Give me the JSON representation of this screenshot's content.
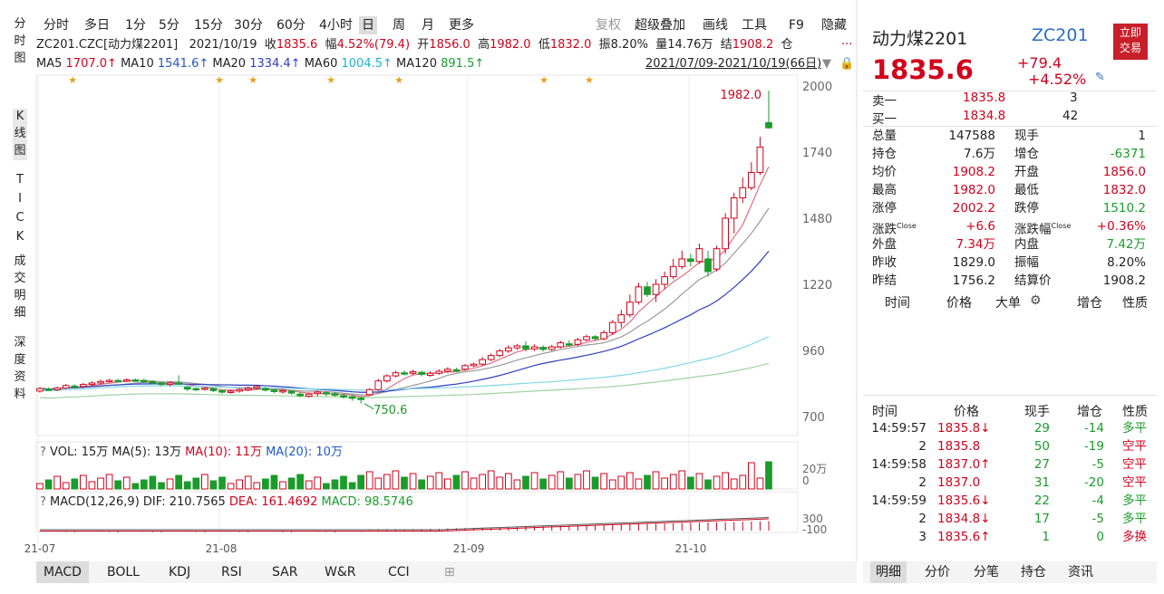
{
  "vertical_tabs": [
    {
      "label": "分时图",
      "chars": [
        "分",
        "时",
        "图"
      ],
      "active": false
    },
    {
      "label": "K线图",
      "chars": [
        "K",
        "线",
        "图"
      ],
      "active": true
    },
    {
      "label": "TICK",
      "chars": [
        "T",
        "I",
        "C",
        "K"
      ],
      "active": false
    },
    {
      "label": "成交明细",
      "chars": [
        "成",
        "交",
        "明",
        "细"
      ],
      "active": false
    },
    {
      "label": "深度资料",
      "chars": [
        "深",
        "度",
        "资",
        "料"
      ],
      "active": false
    }
  ],
  "period_bar": {
    "items": [
      "分时",
      "多日",
      "1分",
      "5分",
      "15分",
      "30分",
      "60分",
      "4小时",
      "日",
      "周",
      "月",
      "更多"
    ],
    "selected": "日",
    "right_items": [
      "复权",
      "超级叠加",
      "画线",
      "工具",
      "F9",
      "隐藏"
    ]
  },
  "info": {
    "code": "ZC201.CZC[动力煤2201]",
    "date": "2021/10/19",
    "close_label": "收",
    "close": "1835.6",
    "amp_label": "幅",
    "amp": "4.52%(79.4)",
    "open_label": "开",
    "open": "1856.0",
    "high_label": "高",
    "high": "1982.0",
    "low_label": "低",
    "low": "1832.0",
    "swing_label": "振",
    "swing": "8.20%",
    "vol_label": "量",
    "vol": "14.76万",
    "settle_label": "结",
    "settle": "1908.2",
    "oi_label": "仓",
    "more": "..."
  },
  "ma_line": {
    "ma5_label": "MA5",
    "ma5": "1707.0↑",
    "ma10_label": "MA10",
    "ma10": "1541.6↑",
    "ma20_label": "MA20",
    "ma20": "1334.4↑",
    "ma60_label": "MA60",
    "ma60": "1004.5↑",
    "ma120_label": "MA120",
    "ma120": "891.5↑",
    "range": "2021/07/09-2021/10/19(66日)"
  },
  "colors": {
    "up": "#d0021b",
    "down": "#1a9c2a",
    "ma5": "#e07080",
    "ma10": "#9a9a9a",
    "ma20": "#2e3fbf",
    "ma60": "#7fd8e8",
    "ma120": "#9ed39e",
    "star": "#e8a020"
  },
  "chart_data": {
    "type": "candlestick",
    "title": "",
    "y_ticks": [
      2000,
      1740,
      1480,
      1220,
      960,
      700
    ],
    "ylim": [
      700,
      2000
    ],
    "x_tick_labels": [
      "21-07",
      "21-08",
      "21-09",
      "21-10"
    ],
    "annotations": [
      {
        "label": "1982.0",
        "value": 1982.0
      },
      {
        "label": "750.6",
        "value": 750.6
      }
    ],
    "candles": [
      {
        "o": 800,
        "c": 810,
        "h": 816,
        "l": 794
      },
      {
        "o": 808,
        "c": 806,
        "h": 814,
        "l": 800
      },
      {
        "o": 805,
        "c": 812,
        "h": 818,
        "l": 800
      },
      {
        "o": 812,
        "c": 822,
        "h": 828,
        "l": 808
      },
      {
        "o": 820,
        "c": 816,
        "h": 826,
        "l": 810
      },
      {
        "o": 818,
        "c": 826,
        "h": 832,
        "l": 812
      },
      {
        "o": 826,
        "c": 832,
        "h": 838,
        "l": 820
      },
      {
        "o": 832,
        "c": 838,
        "h": 845,
        "l": 826
      },
      {
        "o": 838,
        "c": 842,
        "h": 848,
        "l": 834
      },
      {
        "o": 842,
        "c": 840,
        "h": 848,
        "l": 834
      },
      {
        "o": 842,
        "c": 844,
        "h": 850,
        "l": 836
      },
      {
        "o": 844,
        "c": 842,
        "h": 850,
        "l": 836
      },
      {
        "o": 842,
        "c": 838,
        "h": 848,
        "l": 832
      },
      {
        "o": 838,
        "c": 832,
        "h": 842,
        "l": 826
      },
      {
        "o": 832,
        "c": 826,
        "h": 836,
        "l": 820
      },
      {
        "o": 826,
        "c": 832,
        "h": 838,
        "l": 820
      },
      {
        "o": 832,
        "c": 830,
        "h": 862,
        "l": 826
      },
      {
        "o": 815,
        "c": 808,
        "h": 818,
        "l": 800
      },
      {
        "o": 810,
        "c": 806,
        "h": 814,
        "l": 800
      },
      {
        "o": 808,
        "c": 812,
        "h": 816,
        "l": 802
      },
      {
        "o": 810,
        "c": 802,
        "h": 812,
        "l": 796
      },
      {
        "o": 802,
        "c": 796,
        "h": 806,
        "l": 790
      },
      {
        "o": 796,
        "c": 800,
        "h": 806,
        "l": 790
      },
      {
        "o": 800,
        "c": 806,
        "h": 812,
        "l": 794
      },
      {
        "o": 806,
        "c": 812,
        "h": 818,
        "l": 800
      },
      {
        "o": 812,
        "c": 818,
        "h": 824,
        "l": 806
      },
      {
        "o": 810,
        "c": 804,
        "h": 816,
        "l": 798
      },
      {
        "o": 804,
        "c": 798,
        "h": 808,
        "l": 792
      },
      {
        "o": 798,
        "c": 802,
        "h": 808,
        "l": 790
      },
      {
        "o": 800,
        "c": 792,
        "h": 804,
        "l": 786
      },
      {
        "o": 788,
        "c": 782,
        "h": 796,
        "l": 776
      },
      {
        "o": 780,
        "c": 788,
        "h": 794,
        "l": 775
      },
      {
        "o": 790,
        "c": 796,
        "h": 802,
        "l": 780
      },
      {
        "o": 794,
        "c": 790,
        "h": 800,
        "l": 780
      },
      {
        "o": 790,
        "c": 784,
        "h": 796,
        "l": 778
      },
      {
        "o": 782,
        "c": 778,
        "h": 790,
        "l": 770
      },
      {
        "o": 778,
        "c": 772,
        "h": 784,
        "l": 762
      },
      {
        "o": 772,
        "c": 768,
        "h": 780,
        "l": 751
      },
      {
        "o": 786,
        "c": 806,
        "h": 812,
        "l": 782
      },
      {
        "o": 806,
        "c": 840,
        "h": 848,
        "l": 800
      },
      {
        "o": 840,
        "c": 860,
        "h": 866,
        "l": 834
      },
      {
        "o": 860,
        "c": 872,
        "h": 880,
        "l": 854
      },
      {
        "o": 872,
        "c": 868,
        "h": 882,
        "l": 862
      },
      {
        "o": 870,
        "c": 876,
        "h": 884,
        "l": 864
      },
      {
        "o": 874,
        "c": 866,
        "h": 880,
        "l": 858
      },
      {
        "o": 862,
        "c": 870,
        "h": 878,
        "l": 856
      },
      {
        "o": 870,
        "c": 878,
        "h": 886,
        "l": 864
      },
      {
        "o": 878,
        "c": 886,
        "h": 894,
        "l": 872
      },
      {
        "o": 884,
        "c": 880,
        "h": 892,
        "l": 874
      },
      {
        "o": 886,
        "c": 900,
        "h": 906,
        "l": 880
      },
      {
        "o": 900,
        "c": 906,
        "h": 912,
        "l": 894
      },
      {
        "o": 906,
        "c": 924,
        "h": 934,
        "l": 900
      },
      {
        "o": 924,
        "c": 940,
        "h": 948,
        "l": 918
      },
      {
        "o": 940,
        "c": 958,
        "h": 966,
        "l": 934
      },
      {
        "o": 958,
        "c": 970,
        "h": 980,
        "l": 950
      },
      {
        "o": 970,
        "c": 978,
        "h": 986,
        "l": 962
      },
      {
        "o": 978,
        "c": 966,
        "h": 996,
        "l": 956
      },
      {
        "o": 966,
        "c": 974,
        "h": 984,
        "l": 958
      },
      {
        "o": 972,
        "c": 964,
        "h": 980,
        "l": 956
      },
      {
        "o": 964,
        "c": 974,
        "h": 982,
        "l": 958
      },
      {
        "o": 974,
        "c": 990,
        "h": 998,
        "l": 968
      },
      {
        "o": 986,
        "c": 982,
        "h": 1000,
        "l": 976
      },
      {
        "o": 984,
        "c": 1002,
        "h": 1010,
        "l": 978
      },
      {
        "o": 1002,
        "c": 1014,
        "h": 1022,
        "l": 996
      },
      {
        "o": 1014,
        "c": 1006,
        "h": 1020,
        "l": 998
      },
      {
        "o": 1006,
        "c": 1030,
        "h": 1040,
        "l": 1000
      },
      {
        "o": 1030,
        "c": 1070,
        "h": 1080,
        "l": 1020
      },
      {
        "o": 1070,
        "c": 1100,
        "h": 1120,
        "l": 1050
      },
      {
        "o": 1100,
        "c": 1150,
        "h": 1180,
        "l": 1090
      },
      {
        "o": 1150,
        "c": 1210,
        "h": 1226,
        "l": 1140
      },
      {
        "o": 1210,
        "c": 1180,
        "h": 1230,
        "l": 1170
      },
      {
        "o": 1180,
        "c": 1220,
        "h": 1240,
        "l": 1150
      },
      {
        "o": 1220,
        "c": 1250,
        "h": 1270,
        "l": 1200
      },
      {
        "o": 1250,
        "c": 1290,
        "h": 1320,
        "l": 1240
      },
      {
        "o": 1290,
        "c": 1320,
        "h": 1352,
        "l": 1280
      },
      {
        "o": 1320,
        "c": 1310,
        "h": 1340,
        "l": 1290
      },
      {
        "o": 1310,
        "c": 1360,
        "h": 1380,
        "l": 1300
      },
      {
        "o": 1320,
        "c": 1270,
        "h": 1352,
        "l": 1250
      },
      {
        "o": 1280,
        "c": 1360,
        "h": 1372,
        "l": 1270
      },
      {
        "o": 1360,
        "c": 1480,
        "h": 1500,
        "l": 1340
      },
      {
        "o": 1480,
        "c": 1560,
        "h": 1580,
        "l": 1420
      },
      {
        "o": 1560,
        "c": 1600,
        "h": 1640,
        "l": 1540
      },
      {
        "o": 1600,
        "c": 1660,
        "h": 1700,
        "l": 1590
      },
      {
        "o": 1660,
        "c": 1760,
        "h": 1800,
        "l": 1650
      },
      {
        "o": 1856,
        "c": 1835.6,
        "h": 1982,
        "l": 1832
      }
    ],
    "ma_series": [
      "MA5",
      "MA10",
      "MA20",
      "MA60",
      "MA120"
    ]
  },
  "vol_panel": {
    "label_q": "?",
    "vol": "VOL: 15万",
    "ma5": "MA(5): 13万",
    "ma10": "MA(10): 11万",
    "ma20": "MA(20): 10万",
    "y_ticks": [
      "20万",
      "0"
    ]
  },
  "macd_panel": {
    "label_q": "?",
    "title": "MACD(12,26,9)",
    "dif": "DIF: 210.7565",
    "dea": "DEA: 161.4692",
    "macd": "MACD: 98.5746",
    "y_ticks": [
      "300",
      "-100"
    ]
  },
  "bottom_tabs": [
    "MACD",
    "BOLL",
    "KDJ",
    "RSI",
    "SAR",
    "W&R",
    "CCI",
    "⊞"
  ],
  "quote": {
    "name": "动力煤2201",
    "code": "ZC201",
    "trade_btn": "立即交易",
    "trade_btn_chars": [
      "立即",
      "交易"
    ],
    "price": "1835.6",
    "change": "+79.4",
    "change_pct": "+4.52%",
    "ask_label": "卖一",
    "ask_price": "1835.8",
    "ask_vol": "3",
    "bid_label": "买一",
    "bid_price": "1834.8",
    "bid_vol": "42",
    "stats": [
      {
        "l1": "总量",
        "v1": "147588",
        "l2": "现手",
        "v2": "1",
        "c1": "#222",
        "c2": "#222"
      },
      {
        "l1": "持仓",
        "v1": "7.6万",
        "l2": "增仓",
        "v2": "-6371",
        "c1": "#222",
        "c2": "#1a9c2a"
      },
      {
        "l1": "均价",
        "v1": "1908.2",
        "l2": "开盘",
        "v2": "1856.0",
        "c1": "#d0021b",
        "c2": "#d0021b"
      },
      {
        "l1": "最高",
        "v1": "1982.0",
        "l2": "最低",
        "v2": "1832.0",
        "c1": "#d0021b",
        "c2": "#d0021b"
      },
      {
        "l1": "涨停",
        "v1": "2002.2",
        "l2": "跌停",
        "v2": "1510.2",
        "c1": "#d0021b",
        "c2": "#1a9c2a"
      },
      {
        "l1": "涨跌",
        "s1": "Close",
        "v1": "+6.6",
        "l2": "涨跌幅",
        "s2": "Close",
        "v2": "+0.36%",
        "c1": "#d0021b",
        "c2": "#d0021b"
      },
      {
        "l1": "外盘",
        "v1": "7.34万",
        "l2": "内盘",
        "v2": "7.42万",
        "c1": "#d0021b",
        "c2": "#1a9c2a"
      },
      {
        "l1": "昨收",
        "v1": "1829.0",
        "l2": "振幅",
        "v2": "8.20%",
        "c1": "#222",
        "c2": "#222"
      },
      {
        "l1": "昨结",
        "v1": "1756.2",
        "l2": "结算价",
        "v2": "1908.2",
        "c1": "#222",
        "c2": "#222"
      }
    ],
    "tick_header1": [
      "时间",
      "价格",
      "大单",
      "增仓",
      "性质"
    ],
    "tick_header2": [
      "时间",
      "价格",
      "现手",
      "增仓",
      "性质"
    ],
    "ticks": [
      {
        "t": "14:59:57",
        "p": "1835.8↓",
        "v": "29",
        "oi": "-14",
        "n": "多平",
        "pc": "#d0021b",
        "nc": "#1a9c2a"
      },
      {
        "t": "2",
        "p": "1835.8",
        "v": "50",
        "oi": "-19",
        "n": "空平",
        "pc": "#d0021b",
        "nc": "#d0021b"
      },
      {
        "t": "14:59:58",
        "p": "1837.0↑",
        "v": "27",
        "oi": "-5",
        "n": "空平",
        "pc": "#d0021b",
        "nc": "#d0021b"
      },
      {
        "t": "2",
        "p": "1837.0",
        "v": "31",
        "oi": "-20",
        "n": "空平",
        "pc": "#d0021b",
        "nc": "#d0021b"
      },
      {
        "t": "14:59:59",
        "p": "1835.6↓",
        "v": "22",
        "oi": "-4",
        "n": "多平",
        "pc": "#d0021b",
        "nc": "#1a9c2a"
      },
      {
        "t": "2",
        "p": "1834.8↓",
        "v": "17",
        "oi": "-5",
        "n": "多平",
        "pc": "#d0021b",
        "nc": "#1a9c2a"
      },
      {
        "t": "3",
        "p": "1835.6↑",
        "v": "1",
        "oi": "0",
        "n": "多换",
        "pc": "#d0021b",
        "nc": "#d0021b"
      }
    ],
    "bottom_tabs": [
      "明细",
      "分价",
      "分笔",
      "持仓",
      "资讯"
    ],
    "selected_tab": "明细"
  }
}
